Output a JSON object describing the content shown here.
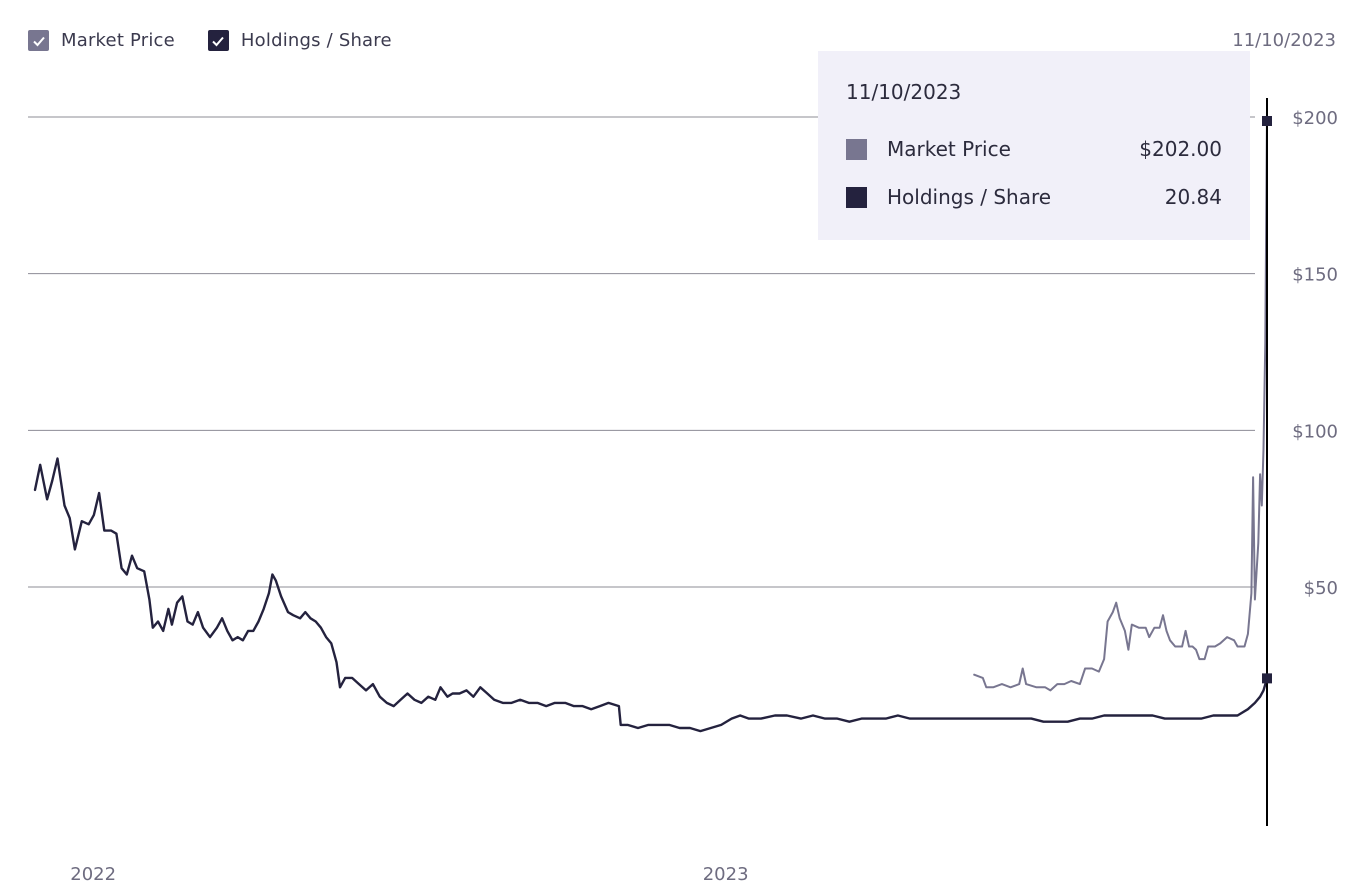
{
  "legend": {
    "items": [
      {
        "label": "Market Price",
        "color": "#787690",
        "checked": true
      },
      {
        "label": "Holdings / Share",
        "color": "#24223e",
        "checked": true
      }
    ]
  },
  "header_date": "11/10/2023",
  "tooltip": {
    "date": "11/10/2023",
    "rows": [
      {
        "name": "Market Price",
        "value": "$202.00",
        "color": "#787690"
      },
      {
        "name": "Holdings / Share",
        "value": "20.84",
        "color": "#24223e"
      }
    ]
  },
  "chart_data": {
    "type": "line",
    "xlim": [
      "2021-11-29",
      "2023-11-10"
    ],
    "ylim": [
      -15,
      215
    ],
    "yticks": [
      50,
      100,
      150,
      200
    ],
    "ytick_labels": [
      "$50",
      "$100",
      "$150",
      "$200"
    ],
    "xticks": [
      "2022-01-01",
      "2023-01-01"
    ],
    "xtick_labels": [
      "2022",
      "2023"
    ],
    "grid": true,
    "cursor_date": "2023-11-10",
    "series": [
      {
        "name": "Market Price",
        "color": "#787690",
        "points": [
          [
            "2023-05-25",
            22
          ],
          [
            "2023-05-30",
            21
          ],
          [
            "2023-06-01",
            18
          ],
          [
            "2023-06-05",
            18
          ],
          [
            "2023-06-10",
            19
          ],
          [
            "2023-06-15",
            18
          ],
          [
            "2023-06-20",
            19
          ],
          [
            "2023-06-22",
            24
          ],
          [
            "2023-06-24",
            19
          ],
          [
            "2023-06-30",
            18
          ],
          [
            "2023-07-05",
            18
          ],
          [
            "2023-07-08",
            17
          ],
          [
            "2023-07-12",
            19
          ],
          [
            "2023-07-16",
            19
          ],
          [
            "2023-07-20",
            20
          ],
          [
            "2023-07-25",
            19
          ],
          [
            "2023-07-28",
            24
          ],
          [
            "2023-08-01",
            24
          ],
          [
            "2023-08-05",
            23
          ],
          [
            "2023-08-08",
            27
          ],
          [
            "2023-08-10",
            39
          ],
          [
            "2023-08-13",
            42
          ],
          [
            "2023-08-15",
            45
          ],
          [
            "2023-08-17",
            40
          ],
          [
            "2023-08-20",
            36
          ],
          [
            "2023-08-22",
            30
          ],
          [
            "2023-08-24",
            38
          ],
          [
            "2023-08-28",
            37
          ],
          [
            "2023-09-01",
            37
          ],
          [
            "2023-09-03",
            34
          ],
          [
            "2023-09-06",
            37
          ],
          [
            "2023-09-09",
            37
          ],
          [
            "2023-09-11",
            41
          ],
          [
            "2023-09-13",
            36
          ],
          [
            "2023-09-15",
            33
          ],
          [
            "2023-09-18",
            31
          ],
          [
            "2023-09-22",
            31
          ],
          [
            "2023-09-24",
            36
          ],
          [
            "2023-09-26",
            31
          ],
          [
            "2023-09-28",
            31
          ],
          [
            "2023-09-30",
            30
          ],
          [
            "2023-10-02",
            27
          ],
          [
            "2023-10-05",
            27
          ],
          [
            "2023-10-07",
            31
          ],
          [
            "2023-10-11",
            31
          ],
          [
            "2023-10-14",
            32
          ],
          [
            "2023-10-18",
            34
          ],
          [
            "2023-10-22",
            33
          ],
          [
            "2023-10-24",
            31
          ],
          [
            "2023-10-26",
            31
          ],
          [
            "2023-10-28",
            31
          ],
          [
            "2023-10-30",
            35
          ],
          [
            "2023-11-01",
            48
          ],
          [
            "2023-11-02",
            85
          ],
          [
            "2023-11-03",
            46
          ],
          [
            "2023-11-05",
            64
          ],
          [
            "2023-11-06",
            86
          ],
          [
            "2023-11-07",
            76
          ],
          [
            "2023-11-08",
            94
          ],
          [
            "2023-11-09",
            128
          ],
          [
            "2023-11-10",
            202
          ]
        ]
      },
      {
        "name": "Holdings / Share",
        "color": "#24223e",
        "points": [
          [
            "2021-11-29",
            81
          ],
          [
            "2021-12-02",
            89
          ],
          [
            "2021-12-06",
            78
          ],
          [
            "2021-12-09",
            84
          ],
          [
            "2021-12-12",
            91
          ],
          [
            "2021-12-16",
            76
          ],
          [
            "2021-12-19",
            72
          ],
          [
            "2021-12-22",
            62
          ],
          [
            "2021-12-26",
            71
          ],
          [
            "2021-12-30",
            70
          ],
          [
            "2022-01-02",
            73
          ],
          [
            "2022-01-05",
            80
          ],
          [
            "2022-01-08",
            68
          ],
          [
            "2022-01-12",
            68
          ],
          [
            "2022-01-15",
            67
          ],
          [
            "2022-01-18",
            56
          ],
          [
            "2022-01-21",
            54
          ],
          [
            "2022-01-24",
            60
          ],
          [
            "2022-01-27",
            56
          ],
          [
            "2022-01-31",
            55
          ],
          [
            "2022-02-03",
            46
          ],
          [
            "2022-02-05",
            37
          ],
          [
            "2022-02-08",
            39
          ],
          [
            "2022-02-11",
            36
          ],
          [
            "2022-02-14",
            43
          ],
          [
            "2022-02-16",
            38
          ],
          [
            "2022-02-19",
            45
          ],
          [
            "2022-02-22",
            47
          ],
          [
            "2022-02-25",
            39
          ],
          [
            "2022-02-28",
            38
          ],
          [
            "2022-03-03",
            42
          ],
          [
            "2022-03-06",
            37
          ],
          [
            "2022-03-10",
            34
          ],
          [
            "2022-03-14",
            37
          ],
          [
            "2022-03-17",
            40
          ],
          [
            "2022-03-20",
            36
          ],
          [
            "2022-03-23",
            33
          ],
          [
            "2022-03-26",
            34
          ],
          [
            "2022-03-29",
            33
          ],
          [
            "2022-04-01",
            36
          ],
          [
            "2022-04-04",
            36
          ],
          [
            "2022-04-07",
            39
          ],
          [
            "2022-04-10",
            43
          ],
          [
            "2022-04-13",
            48
          ],
          [
            "2022-04-15",
            54
          ],
          [
            "2022-04-17",
            52
          ],
          [
            "2022-04-20",
            47
          ],
          [
            "2022-04-24",
            42
          ],
          [
            "2022-04-27",
            41
          ],
          [
            "2022-05-01",
            40
          ],
          [
            "2022-05-04",
            42
          ],
          [
            "2022-05-07",
            40
          ],
          [
            "2022-05-10",
            39
          ],
          [
            "2022-05-13",
            37
          ],
          [
            "2022-05-16",
            34
          ],
          [
            "2022-05-19",
            32
          ],
          [
            "2022-05-22",
            26
          ],
          [
            "2022-05-24",
            18
          ],
          [
            "2022-05-27",
            21
          ],
          [
            "2022-05-31",
            21
          ],
          [
            "2022-06-04",
            19
          ],
          [
            "2022-06-08",
            17
          ],
          [
            "2022-06-12",
            19
          ],
          [
            "2022-06-16",
            15
          ],
          [
            "2022-06-20",
            13
          ],
          [
            "2022-06-24",
            12
          ],
          [
            "2022-06-28",
            14
          ],
          [
            "2022-07-02",
            16
          ],
          [
            "2022-07-06",
            14
          ],
          [
            "2022-07-10",
            13
          ],
          [
            "2022-07-14",
            15
          ],
          [
            "2022-07-18",
            14
          ],
          [
            "2022-07-21",
            18
          ],
          [
            "2022-07-25",
            15
          ],
          [
            "2022-07-28",
            16
          ],
          [
            "2022-08-01",
            16
          ],
          [
            "2022-08-05",
            17
          ],
          [
            "2022-08-09",
            15
          ],
          [
            "2022-08-13",
            18
          ],
          [
            "2022-08-17",
            16
          ],
          [
            "2022-08-21",
            14
          ],
          [
            "2022-08-26",
            13
          ],
          [
            "2022-08-31",
            13
          ],
          [
            "2022-09-05",
            14
          ],
          [
            "2022-09-10",
            13
          ],
          [
            "2022-09-15",
            13
          ],
          [
            "2022-09-20",
            12
          ],
          [
            "2022-09-25",
            13
          ],
          [
            "2022-10-01",
            13
          ],
          [
            "2022-10-06",
            12
          ],
          [
            "2022-10-11",
            12
          ],
          [
            "2022-10-16",
            11
          ],
          [
            "2022-10-21",
            12
          ],
          [
            "2022-10-26",
            13
          ],
          [
            "2022-11-01",
            12
          ],
          [
            "2022-11-02",
            6
          ],
          [
            "2022-11-06",
            6
          ],
          [
            "2022-11-12",
            5
          ],
          [
            "2022-11-18",
            6
          ],
          [
            "2022-11-24",
            6
          ],
          [
            "2022-11-30",
            6
          ],
          [
            "2022-12-06",
            5
          ],
          [
            "2022-12-12",
            5
          ],
          [
            "2022-12-18",
            4
          ],
          [
            "2022-12-24",
            5
          ],
          [
            "2022-12-30",
            6
          ],
          [
            "2023-01-05",
            8
          ],
          [
            "2023-01-10",
            9
          ],
          [
            "2023-01-15",
            8
          ],
          [
            "2023-01-22",
            8
          ],
          [
            "2023-01-30",
            9
          ],
          [
            "2023-02-06",
            9
          ],
          [
            "2023-02-14",
            8
          ],
          [
            "2023-02-21",
            9
          ],
          [
            "2023-02-28",
            8
          ],
          [
            "2023-03-07",
            8
          ],
          [
            "2023-03-14",
            7
          ],
          [
            "2023-03-21",
            8
          ],
          [
            "2023-03-28",
            8
          ],
          [
            "2023-04-04",
            8
          ],
          [
            "2023-04-11",
            9
          ],
          [
            "2023-04-18",
            8
          ],
          [
            "2023-04-25",
            8
          ],
          [
            "2023-05-02",
            8
          ],
          [
            "2023-05-09",
            8
          ],
          [
            "2023-05-16",
            8
          ],
          [
            "2023-05-23",
            8
          ],
          [
            "2023-05-30",
            8
          ],
          [
            "2023-06-06",
            8
          ],
          [
            "2023-06-13",
            8
          ],
          [
            "2023-06-20",
            8
          ],
          [
            "2023-06-27",
            8
          ],
          [
            "2023-07-04",
            7
          ],
          [
            "2023-07-11",
            7
          ],
          [
            "2023-07-18",
            7
          ],
          [
            "2023-07-25",
            8
          ],
          [
            "2023-08-01",
            8
          ],
          [
            "2023-08-08",
            9
          ],
          [
            "2023-08-15",
            9
          ],
          [
            "2023-08-22",
            9
          ],
          [
            "2023-08-29",
            9
          ],
          [
            "2023-09-05",
            9
          ],
          [
            "2023-09-12",
            8
          ],
          [
            "2023-09-19",
            8
          ],
          [
            "2023-09-26",
            8
          ],
          [
            "2023-10-03",
            8
          ],
          [
            "2023-10-10",
            9
          ],
          [
            "2023-10-17",
            9
          ],
          [
            "2023-10-24",
            9
          ],
          [
            "2023-10-30",
            11
          ],
          [
            "2023-11-03",
            13
          ],
          [
            "2023-11-06",
            15
          ],
          [
            "2023-11-08",
            17
          ],
          [
            "2023-11-10",
            20.84
          ]
        ]
      }
    ]
  }
}
